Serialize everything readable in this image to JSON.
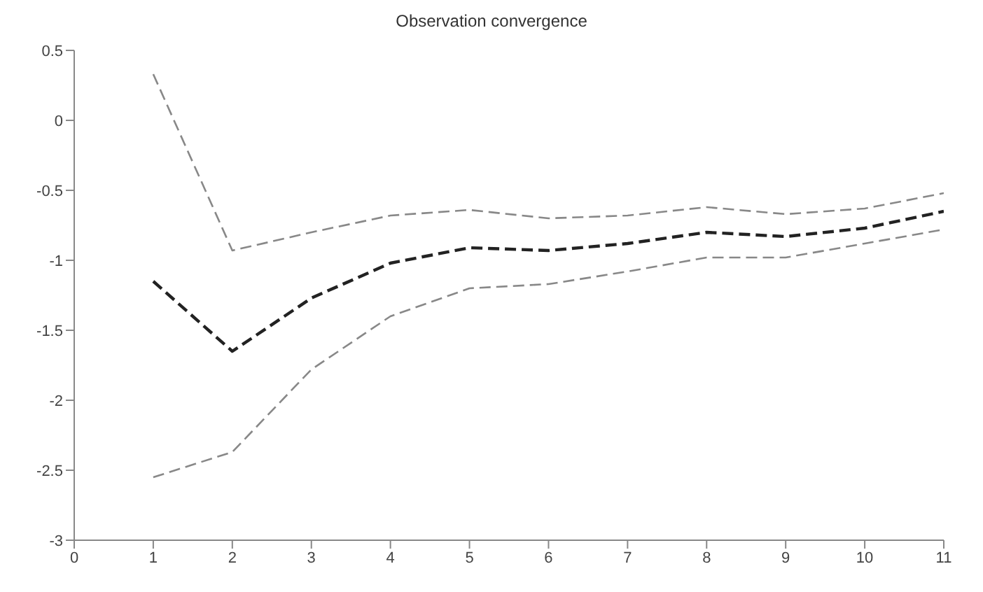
{
  "chart_data": {
    "type": "line",
    "title": "Observation convergence",
    "x": [
      1,
      2,
      3,
      4,
      5,
      6,
      7,
      8,
      9,
      10,
      11
    ],
    "series": [
      {
        "color": "#888888",
        "line_style": "dashed",
        "values": [
          0.33,
          -0.93,
          -0.8,
          -0.68,
          -0.64,
          -0.7,
          -0.68,
          -0.62,
          -0.67,
          -0.63,
          -0.52
        ]
      },
      {
        "color": "#222222",
        "line_style": "dashed",
        "values": [
          -1.15,
          -1.65,
          -1.27,
          -1.02,
          -0.91,
          -0.93,
          -0.88,
          -0.8,
          -0.83,
          -0.77,
          -0.65
        ]
      },
      {
        "color": "#888888",
        "line_style": "dashed",
        "values": [
          -2.55,
          -2.37,
          -1.78,
          -1.4,
          -1.2,
          -1.17,
          -1.08,
          -0.98,
          -0.98,
          -0.88,
          -0.78
        ]
      }
    ],
    "xlim": [
      0,
      11
    ],
    "xticks": [
      0,
      1,
      2,
      3,
      4,
      5,
      6,
      7,
      8,
      9,
      10,
      11
    ],
    "ylim": [
      -3,
      0.5
    ],
    "yticks": [
      -3,
      -2.5,
      -2,
      -1.5,
      -1,
      -0.5,
      0,
      0.5
    ],
    "grid": false,
    "legend": false,
    "marker": "none"
  }
}
